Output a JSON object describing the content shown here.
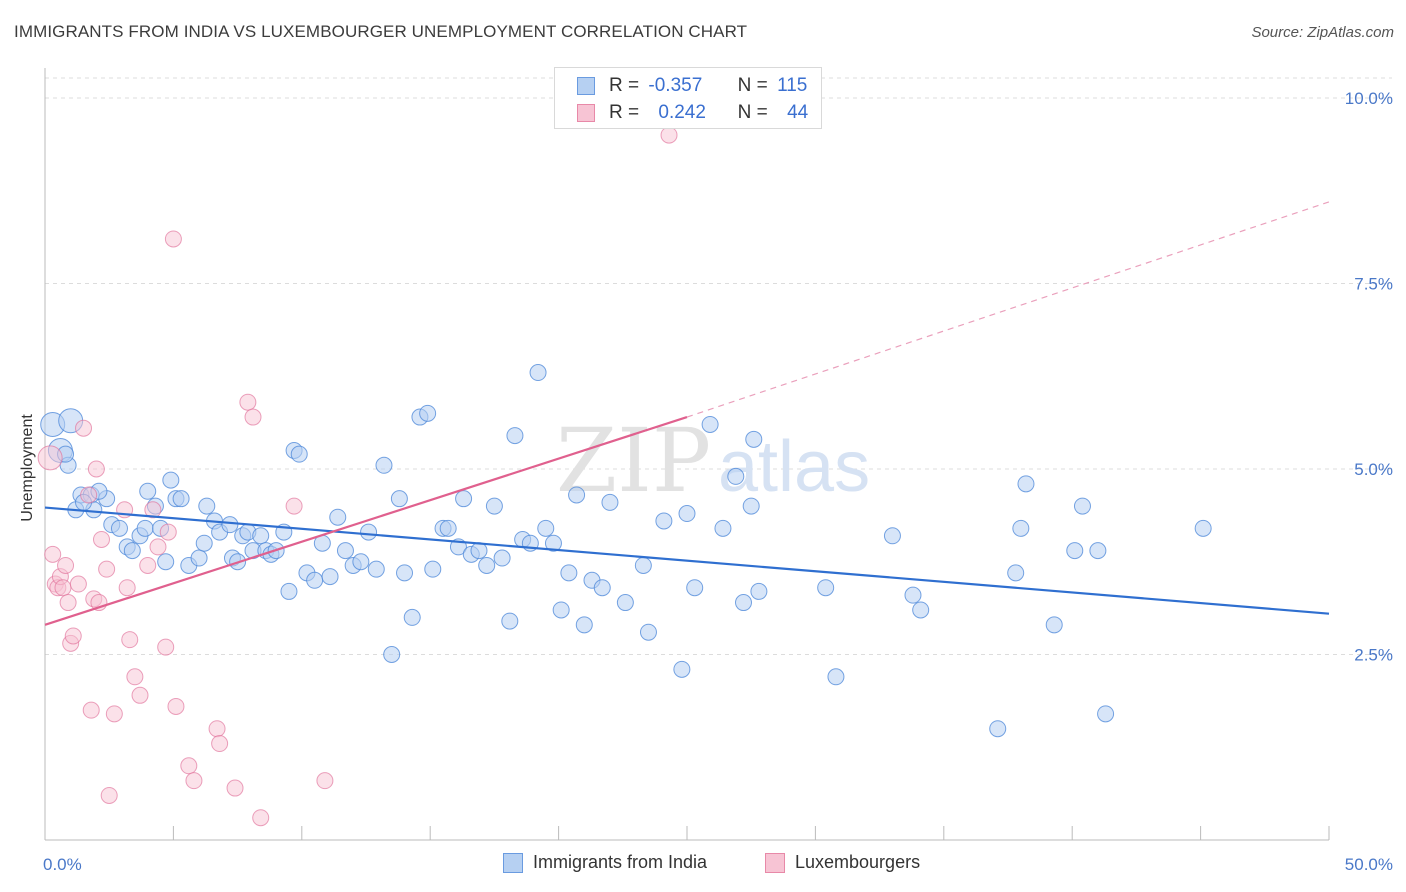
{
  "header": {
    "title": "IMMIGRANTS FROM INDIA VS LUXEMBOURGER UNEMPLOYMENT CORRELATION CHART",
    "source": "Source: ZipAtlas.com"
  },
  "watermark": {
    "zip": "ZIP",
    "atlas": "atlas"
  },
  "legend": {
    "rows": [
      {
        "r_label": "R =",
        "r_value": "-0.357",
        "n_label": "N =",
        "n_value": "115",
        "color": "#a9c8f0",
        "edge": "#6a9be0"
      },
      {
        "r_label": "R =",
        "r_value": "0.242",
        "n_label": "N =",
        "n_value": "44",
        "color": "#f7bfd0",
        "edge": "#e889a8"
      }
    ]
  },
  "bottom_legend": {
    "india": "Immigrants from India",
    "lux": "Luxembourgers"
  },
  "chart_data": {
    "type": "scatter",
    "title": "IMMIGRANTS FROM INDIA VS LUXEMBOURGER UNEMPLOYMENT CORRELATION CHART",
    "xlabel": "",
    "ylabel": "Unemployment",
    "xlim": [
      0,
      50
    ],
    "ylim": [
      0,
      10.5
    ],
    "x_tick_labels": [
      "0.0%",
      "50.0%"
    ],
    "y_ticks": [
      2.5,
      5.0,
      7.5,
      10.0
    ],
    "y_tick_labels": [
      "2.5%",
      "5.0%",
      "7.5%",
      "10.0%"
    ],
    "grid": "horizontal dashed",
    "colors": {
      "india": "#4a86d8",
      "india_fill": "#b6d0f2",
      "lux": "#e0709a",
      "lux_fill": "#f7c4d4"
    },
    "series": [
      {
        "name": "Immigrants from India",
        "r": -0.357,
        "n": 115,
        "trend": {
          "x0": 0,
          "y0": 4.48,
          "x1": 50,
          "y1": 3.05
        },
        "points": [
          [
            0.3,
            5.6
          ],
          [
            0.6,
            5.25
          ],
          [
            1.0,
            5.65
          ],
          [
            0.9,
            5.05
          ],
          [
            1.4,
            4.65
          ],
          [
            1.2,
            4.45
          ],
          [
            1.8,
            4.65
          ],
          [
            1.9,
            4.45
          ],
          [
            2.4,
            4.6
          ],
          [
            2.6,
            4.25
          ],
          [
            2.9,
            4.2
          ],
          [
            3.2,
            3.95
          ],
          [
            3.4,
            3.9
          ],
          [
            3.7,
            4.1
          ],
          [
            3.9,
            4.2
          ],
          [
            4.0,
            4.7
          ],
          [
            4.3,
            4.5
          ],
          [
            4.5,
            4.2
          ],
          [
            4.7,
            3.75
          ],
          [
            4.9,
            4.85
          ],
          [
            5.1,
            4.6
          ],
          [
            5.3,
            4.6
          ],
          [
            5.6,
            3.7
          ],
          [
            6.0,
            3.8
          ],
          [
            6.2,
            4.0
          ],
          [
            6.3,
            4.5
          ],
          [
            6.6,
            4.3
          ],
          [
            6.8,
            4.15
          ],
          [
            7.2,
            4.25
          ],
          [
            7.3,
            3.8
          ],
          [
            7.5,
            3.75
          ],
          [
            7.7,
            4.1
          ],
          [
            7.9,
            4.15
          ],
          [
            8.1,
            3.9
          ],
          [
            8.4,
            4.1
          ],
          [
            8.6,
            3.9
          ],
          [
            8.8,
            3.85
          ],
          [
            9.0,
            3.9
          ],
          [
            9.3,
            4.15
          ],
          [
            9.5,
            3.35
          ],
          [
            9.7,
            5.25
          ],
          [
            9.9,
            5.2
          ],
          [
            10.2,
            3.6
          ],
          [
            10.5,
            3.5
          ],
          [
            10.8,
            4.0
          ],
          [
            11.1,
            3.55
          ],
          [
            11.4,
            4.35
          ],
          [
            11.7,
            3.9
          ],
          [
            12.0,
            3.7
          ],
          [
            12.3,
            3.75
          ],
          [
            12.6,
            4.15
          ],
          [
            12.9,
            3.65
          ],
          [
            13.2,
            5.05
          ],
          [
            13.5,
            2.5
          ],
          [
            13.8,
            4.6
          ],
          [
            14.0,
            3.6
          ],
          [
            14.3,
            3.0
          ],
          [
            14.6,
            5.7
          ],
          [
            14.9,
            5.75
          ],
          [
            15.1,
            3.65
          ],
          [
            15.5,
            4.2
          ],
          [
            15.7,
            4.2
          ],
          [
            16.1,
            3.95
          ],
          [
            16.3,
            4.6
          ],
          [
            16.6,
            3.85
          ],
          [
            16.9,
            3.9
          ],
          [
            17.2,
            3.7
          ],
          [
            17.5,
            4.5
          ],
          [
            17.8,
            3.8
          ],
          [
            18.1,
            2.95
          ],
          [
            18.3,
            5.45
          ],
          [
            18.6,
            4.05
          ],
          [
            18.9,
            4.0
          ],
          [
            19.2,
            6.3
          ],
          [
            19.5,
            4.2
          ],
          [
            19.8,
            4.0
          ],
          [
            20.1,
            3.1
          ],
          [
            20.4,
            3.6
          ],
          [
            20.7,
            4.65
          ],
          [
            21.0,
            2.9
          ],
          [
            21.3,
            3.5
          ],
          [
            21.7,
            3.4
          ],
          [
            22.0,
            4.55
          ],
          [
            22.6,
            3.2
          ],
          [
            23.3,
            3.7
          ],
          [
            23.5,
            2.8
          ],
          [
            24.1,
            4.3
          ],
          [
            24.8,
            2.3
          ],
          [
            25.0,
            4.4
          ],
          [
            25.3,
            3.4
          ],
          [
            25.9,
            5.6
          ],
          [
            26.4,
            4.2
          ],
          [
            26.9,
            4.9
          ],
          [
            27.2,
            3.2
          ],
          [
            27.5,
            4.5
          ],
          [
            27.6,
            5.4
          ],
          [
            27.8,
            3.35
          ],
          [
            30.4,
            3.4
          ],
          [
            30.8,
            2.2
          ],
          [
            33.0,
            4.1
          ],
          [
            33.8,
            3.3
          ],
          [
            34.1,
            3.1
          ],
          [
            37.1,
            1.5
          ],
          [
            37.8,
            3.6
          ],
          [
            38.0,
            4.2
          ],
          [
            38.2,
            4.8
          ],
          [
            39.3,
            2.9
          ],
          [
            40.1,
            3.9
          ],
          [
            40.4,
            4.5
          ],
          [
            41.0,
            3.9
          ],
          [
            41.3,
            1.7
          ],
          [
            45.1,
            4.2
          ],
          [
            0.8,
            5.2
          ],
          [
            1.5,
            4.55
          ],
          [
            2.1,
            4.7
          ]
        ]
      },
      {
        "name": "Luxembourgers",
        "r": 0.242,
        "n": 44,
        "trend": {
          "x0": 0,
          "y0": 2.9,
          "x1": 25,
          "y1": 5.7,
          "x2": 50,
          "y2": 8.6
        },
        "points": [
          [
            0.2,
            5.15
          ],
          [
            0.3,
            3.85
          ],
          [
            0.4,
            3.45
          ],
          [
            0.5,
            3.4
          ],
          [
            0.6,
            3.55
          ],
          [
            0.7,
            3.4
          ],
          [
            0.8,
            3.7
          ],
          [
            0.9,
            3.2
          ],
          [
            1.0,
            2.65
          ],
          [
            1.1,
            2.75
          ],
          [
            1.3,
            3.45
          ],
          [
            1.5,
            5.55
          ],
          [
            1.7,
            4.65
          ],
          [
            1.8,
            1.75
          ],
          [
            1.9,
            3.25
          ],
          [
            2.0,
            5.0
          ],
          [
            2.1,
            3.2
          ],
          [
            2.2,
            4.05
          ],
          [
            2.4,
            3.65
          ],
          [
            2.5,
            0.6
          ],
          [
            2.7,
            1.7
          ],
          [
            3.1,
            4.45
          ],
          [
            3.2,
            3.4
          ],
          [
            3.3,
            2.7
          ],
          [
            3.5,
            2.2
          ],
          [
            3.7,
            1.95
          ],
          [
            4.0,
            3.7
          ],
          [
            4.2,
            4.45
          ],
          [
            4.4,
            3.95
          ],
          [
            4.7,
            2.6
          ],
          [
            4.8,
            4.15
          ],
          [
            5.0,
            8.1
          ],
          [
            5.1,
            1.8
          ],
          [
            5.6,
            1.0
          ],
          [
            5.8,
            0.8
          ],
          [
            6.7,
            1.5
          ],
          [
            6.8,
            1.3
          ],
          [
            7.4,
            0.7
          ],
          [
            7.9,
            5.9
          ],
          [
            8.1,
            5.7
          ],
          [
            8.4,
            0.3
          ],
          [
            9.7,
            4.5
          ],
          [
            10.9,
            0.8
          ],
          [
            24.3,
            9.5
          ]
        ]
      }
    ]
  }
}
